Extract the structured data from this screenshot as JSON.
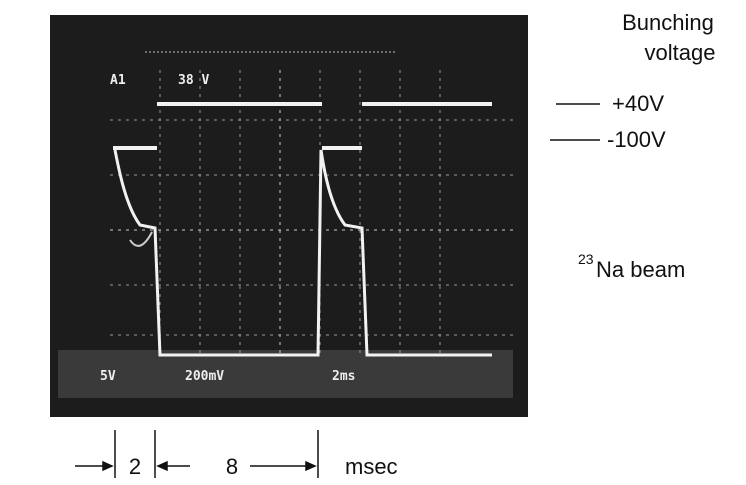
{
  "screen": {
    "channel": "A1",
    "level": "38 V",
    "scale_left": "5V",
    "scale_mid": "200mV",
    "timebase": "2ms"
  },
  "labels": {
    "title_line1": "Bunching",
    "title_line2": "voltage",
    "high_level": "+40V",
    "low_level": "-100V",
    "beam_mass": "23",
    "beam_name": "Na beam"
  },
  "timing": {
    "interval_1": "2",
    "interval_2": "8",
    "unit": "msec"
  }
}
